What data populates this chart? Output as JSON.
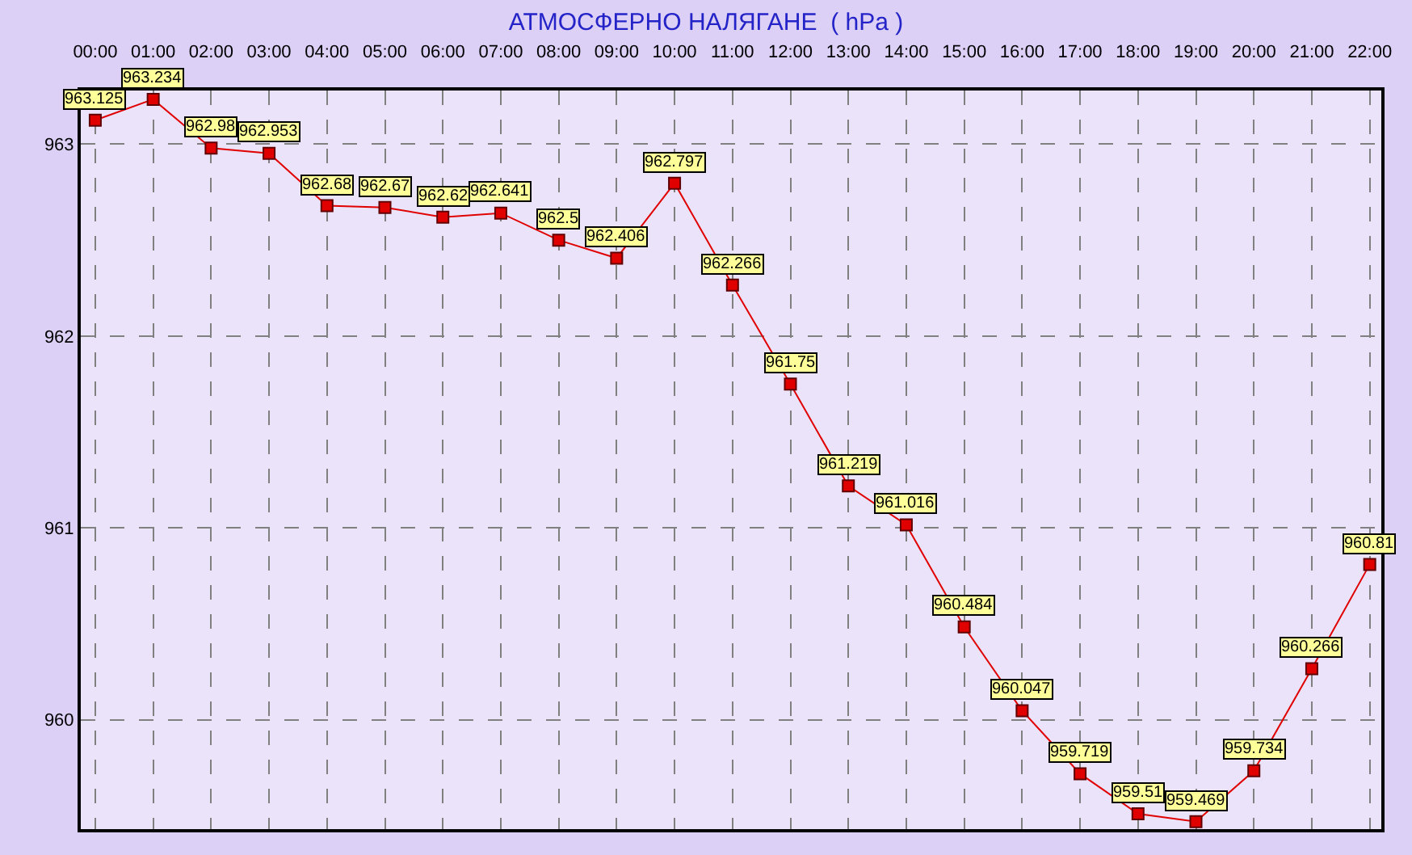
{
  "chart_data": {
    "type": "line",
    "title": "АТМОСФЕРНО НАЛЯГАНЕ  ( hPa )",
    "categories": [
      "00:00",
      "01:00",
      "02:00",
      "03:00",
      "04:00",
      "05:00",
      "06:00",
      "07:00",
      "08:00",
      "09:00",
      "10:00",
      "11:00",
      "12:00",
      "13:00",
      "14:00",
      "15:00",
      "16:00",
      "17:00",
      "18:00",
      "19:00",
      "20:00",
      "21:00",
      "22:00"
    ],
    "series": [
      {
        "color": "#e00000",
        "values": [
          963.125,
          963.234,
          962.98,
          962.953,
          962.68,
          962.67,
          962.62,
          962.641,
          962.5,
          962.406,
          962.797,
          962.266,
          961.75,
          961.219,
          961.016,
          960.484,
          960.047,
          959.719,
          959.51,
          959.469,
          959.734,
          960.266,
          960.81
        ]
      }
    ],
    "ylim": [
      959.43,
      963.28
    ],
    "yticks": [
      960,
      961,
      962,
      963
    ],
    "grid": true,
    "marker": "square",
    "line_style": "solid",
    "data_labels": true,
    "legend": false
  }
}
